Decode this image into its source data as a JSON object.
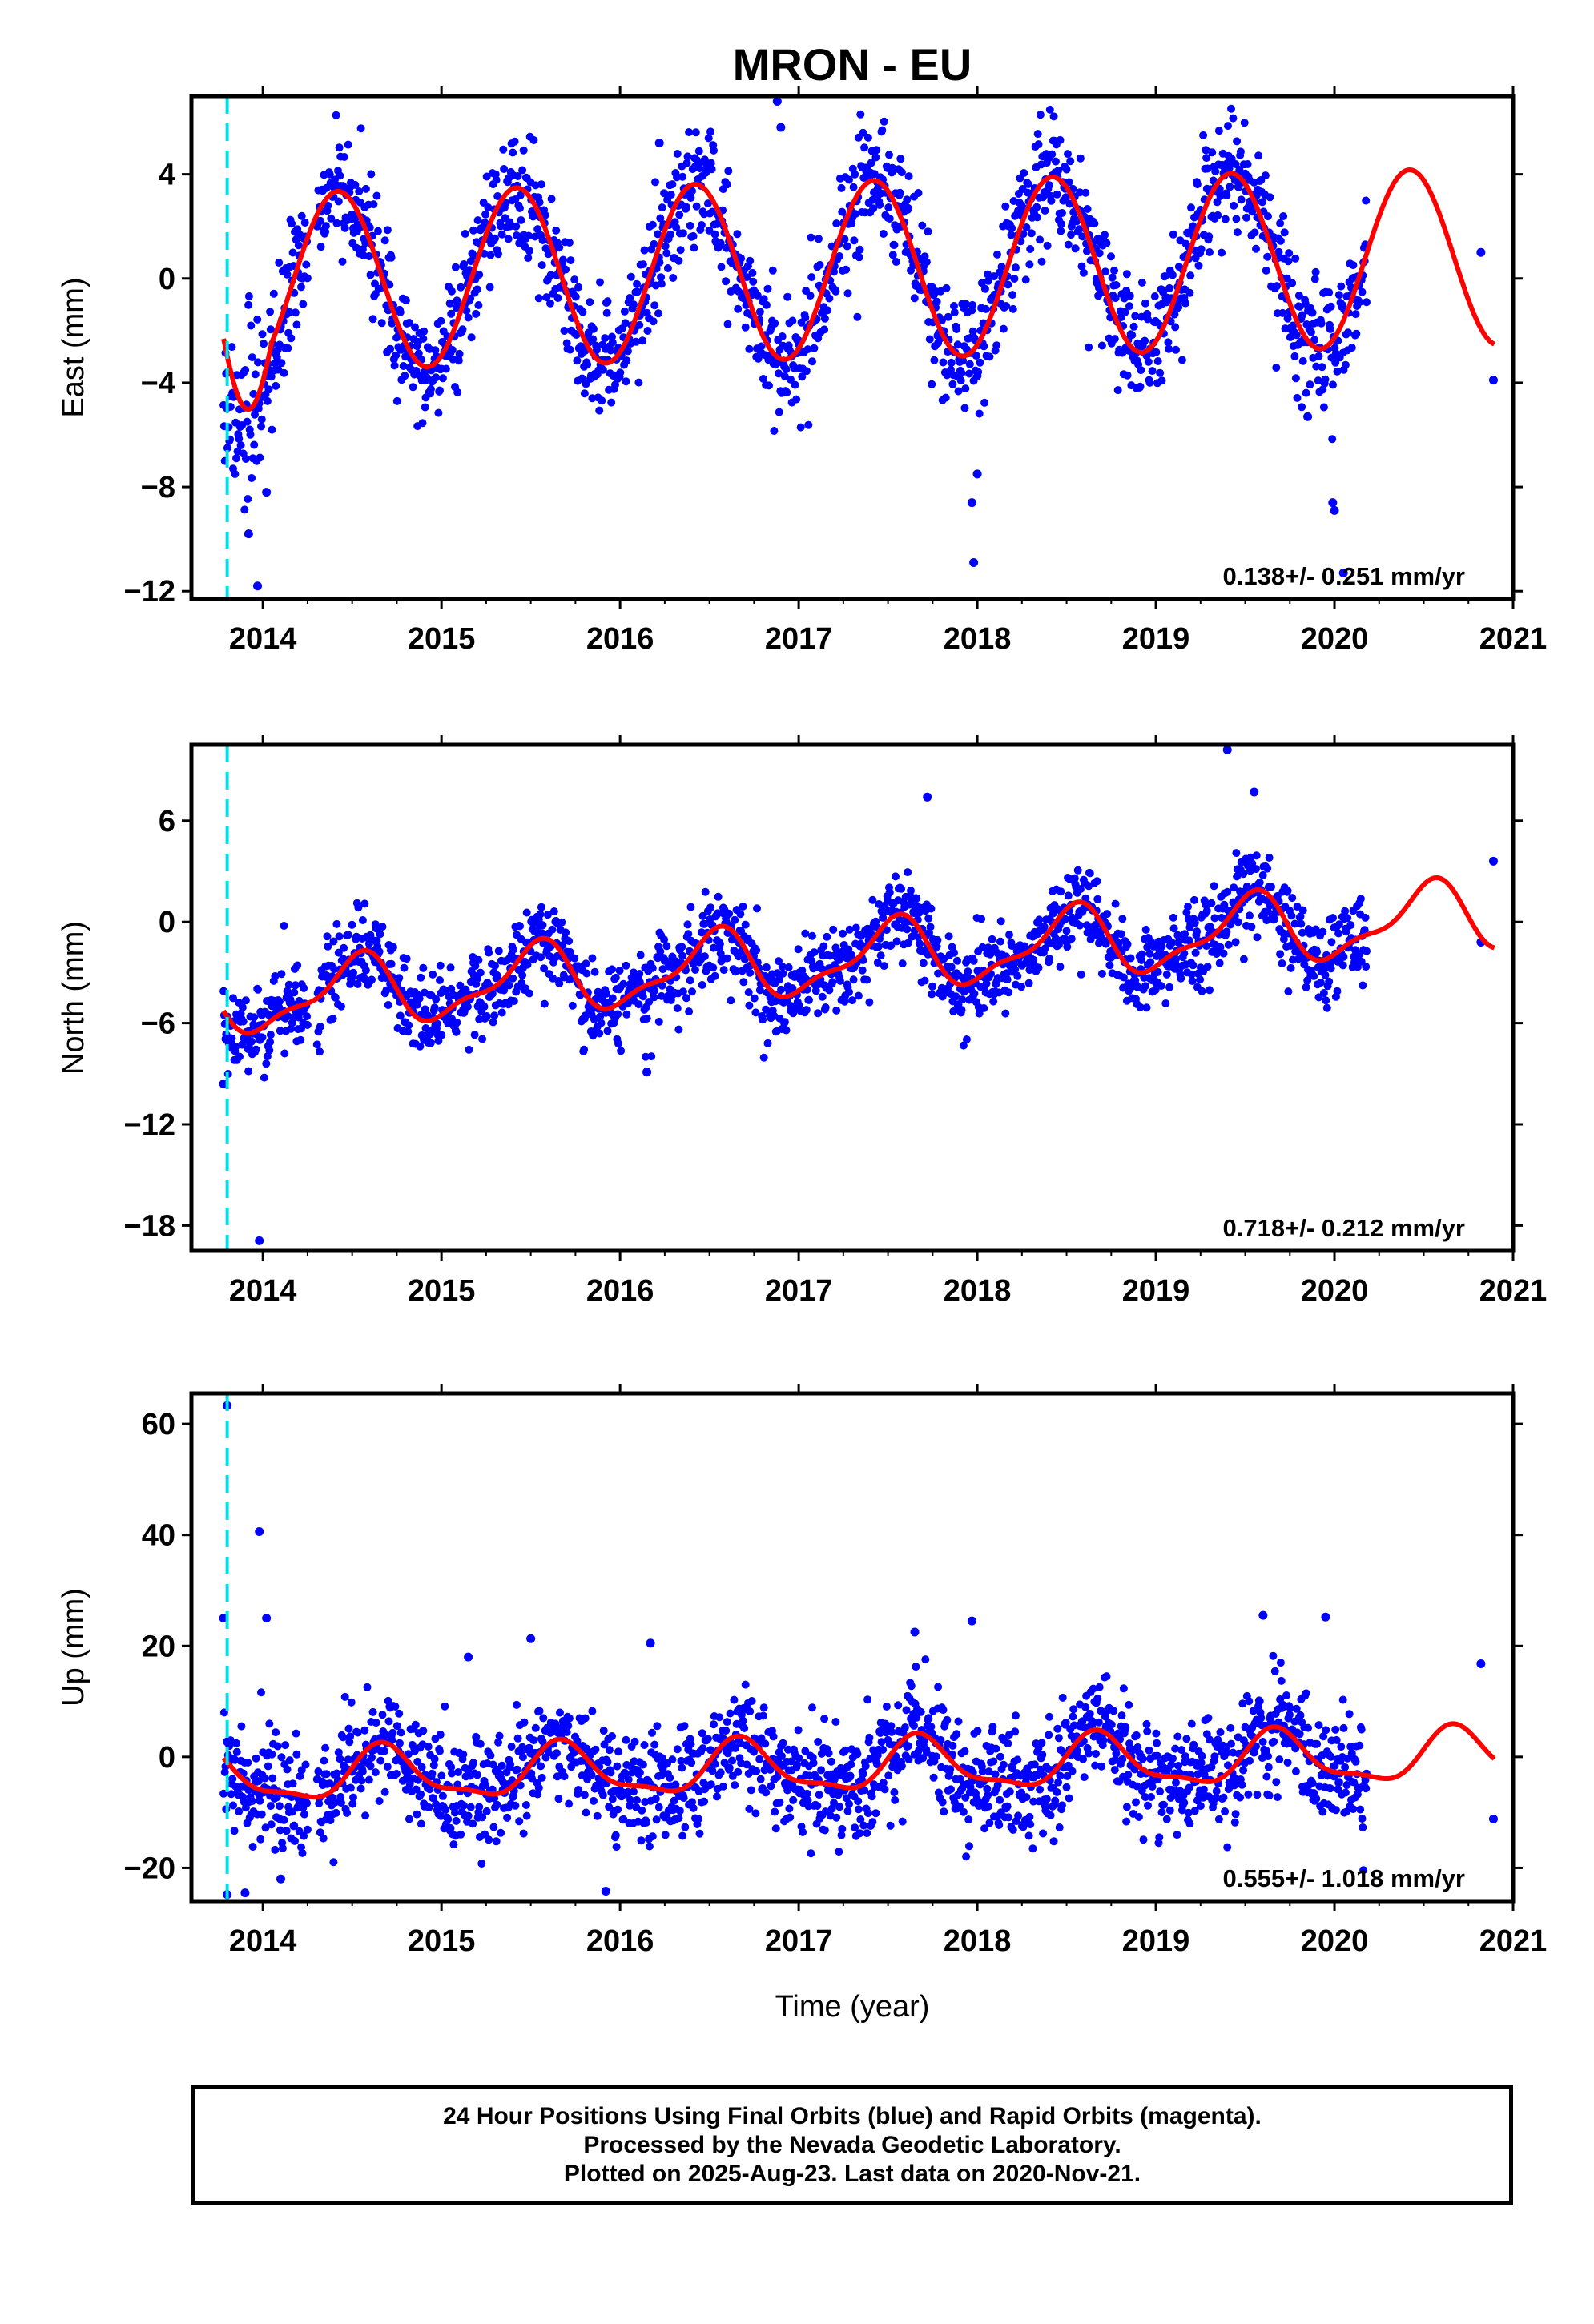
{
  "chart_data": {
    "type": "scatter",
    "title": "MRON - EU",
    "xlabel": "Time (year)",
    "x_ticks": [
      "2014",
      "2015",
      "2016",
      "2017",
      "2018",
      "2019",
      "2020",
      "2021"
    ],
    "x_range": [
      2013.6,
      2021.0
    ],
    "data_start": 2013.78,
    "data_end": 2020.18,
    "late_points_years": [
      2020.82,
      2020.89
    ],
    "equipment_change_year": 2013.8,
    "colors": {
      "data": "#0000ff",
      "model": "#ff0000",
      "offset": "#00e0e8"
    },
    "panels": [
      {
        "name": "east",
        "ylabel": "East (mm)",
        "ylim": [
          -12.3,
          7.0
        ],
        "yticks": [
          "4",
          "0",
          "−4",
          "−8",
          "−12"
        ],
        "ytick_values": [
          4,
          0,
          -4,
          -8,
          -12
        ],
        "rate_label": "0.138+/- 0.251 mm/yr",
        "model": {
          "offset": 0.3,
          "slope": 0.138,
          "annual_amp": 3.4,
          "annual_peak": 0.42,
          "semi_amp": 0.0,
          "semi_peak": 0.0,
          "start_transient": -3.0
        },
        "noise_sd": 1.15,
        "late_points": [
          1.0,
          -3.9
        ],
        "outliers": [
          [
            2013.92,
            -9.8
          ],
          [
            2013.97,
            -11.8
          ],
          [
            2014.02,
            -8.2
          ],
          [
            2016.22,
            5.2
          ],
          [
            2016.88,
            6.8
          ],
          [
            2016.9,
            5.8
          ],
          [
            2017.98,
            -10.9
          ],
          [
            2017.97,
            -8.6
          ],
          [
            2018.0,
            -7.5
          ],
          [
            2019.99,
            -8.6
          ],
          [
            2020.0,
            -8.9
          ],
          [
            2020.05,
            -11.3
          ],
          [
            2019.85,
            -5.3
          ]
        ]
      },
      {
        "name": "north",
        "ylabel": "North (mm)",
        "ylim": [
          -19.5,
          10.5
        ],
        "yticks": [
          "6",
          "0",
          "−6",
          "−12",
          "−18"
        ],
        "ytick_values": [
          6,
          0,
          -6,
          -12,
          -18
        ],
        "rate_label": "0.718+/- 0.212 mm/yr",
        "model": {
          "offset": -2.4,
          "slope": 0.718,
          "annual_amp": 1.9,
          "annual_peak": 0.52,
          "semi_amp": 0.7,
          "semi_peak": 0.1,
          "start_transient": 0.0
        },
        "noise_sd": 1.25,
        "late_points": [
          -1.2,
          3.6
        ],
        "outliers": [
          [
            2013.78,
            -9.6
          ],
          [
            2013.98,
            -18.9
          ],
          [
            2016.15,
            -8.9
          ],
          [
            2019.4,
            10.2
          ],
          [
            2019.55,
            7.7
          ],
          [
            2017.72,
            7.4
          ]
        ]
      },
      {
        "name": "up",
        "ylabel": "Up (mm)",
        "ylim": [
          -26.0,
          65.5
        ],
        "yticks": [
          "60",
          "40",
          "20",
          "0",
          "−20"
        ],
        "ytick_values": [
          60,
          40,
          20,
          0,
          -20
        ],
        "rate_label": "0.555+/- 1.018 mm/yr",
        "model": {
          "offset": -2.0,
          "slope": 0.555,
          "annual_amp": 4.5,
          "annual_peak": 0.68,
          "semi_amp": 1.5,
          "semi_peak": 0.15,
          "start_transient": 0.0
        },
        "noise_sd": 5.0,
        "late_points": [
          16.8,
          -11.2
        ],
        "outliers": [
          [
            2013.8,
            63.3
          ],
          [
            2013.98,
            40.6
          ],
          [
            2014.02,
            25.0
          ],
          [
            2013.78,
            25.0
          ],
          [
            2015.15,
            18.0
          ],
          [
            2015.5,
            21.3
          ],
          [
            2016.17,
            20.5
          ],
          [
            2015.92,
            -24.2
          ],
          [
            2017.65,
            22.5
          ],
          [
            2017.97,
            24.5
          ],
          [
            2019.6,
            25.5
          ],
          [
            2019.95,
            25.2
          ],
          [
            2013.8,
            -24.8
          ],
          [
            2013.9,
            -24.5
          ],
          [
            2014.1,
            -22.0
          ]
        ]
      }
    ]
  },
  "footer": {
    "line1": "24 Hour Positions Using Final Orbits (blue) and Rapid Orbits (magenta).",
    "line2": "Processed by the Nevada Geodetic Laboratory.",
    "line3": "Plotted on 2025-Aug-23. Last data on 2020-Nov-21."
  }
}
